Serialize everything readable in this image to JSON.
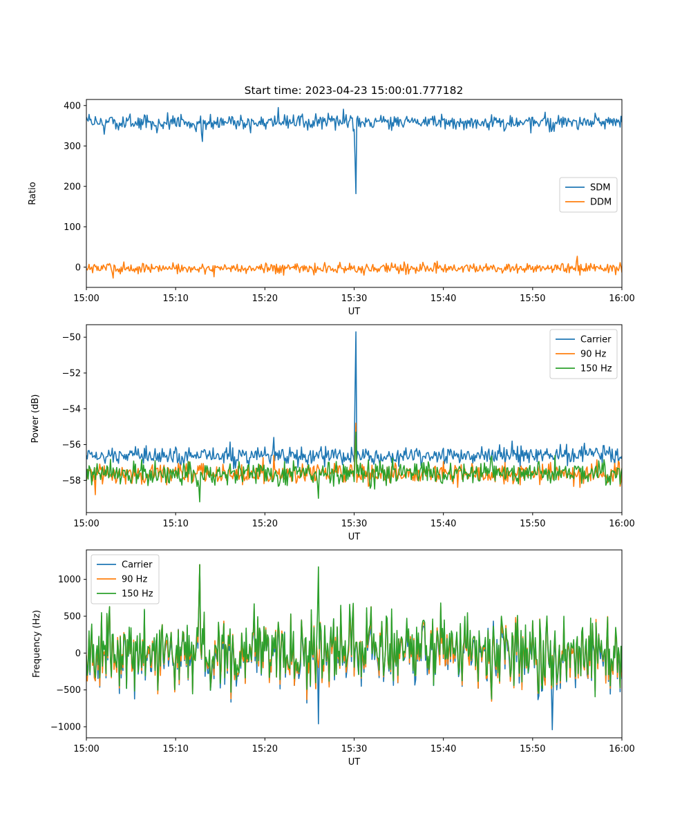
{
  "figure": {
    "title": "Start time: 2023-04-23 15:00:01.777182"
  },
  "colors": {
    "SDM": "#1f77b4",
    "DDM": "#ff7f0e",
    "Carrier": "#1f77b4",
    "90 Hz": "#ff7f0e",
    "150 Hz": "#2ca02c"
  },
  "chart_data": [
    {
      "type": "line",
      "title": "Start time: 2023-04-23 15:00:01.777182",
      "xlabel": "UT",
      "ylabel": "Ratio",
      "xlim": [
        "15:00",
        "16:00"
      ],
      "x_ticks": [
        "15:00",
        "15:10",
        "15:20",
        "15:30",
        "15:40",
        "15:50",
        "16:00"
      ],
      "ylim": [
        -50,
        415
      ],
      "y_ticks": [
        0,
        100,
        200,
        300,
        400
      ],
      "y_tick_labels": [
        "0",
        "100",
        "200",
        "300",
        "400"
      ],
      "legend": "center-right",
      "grid": false,
      "series": [
        {
          "name": "SDM",
          "color": "#1f77b4",
          "base": 358,
          "noise": 13,
          "events": [
            {
              "t": "15:30:12",
              "y": 182
            },
            {
              "t": "15:21:30",
              "y": 395
            },
            {
              "t": "15:13:00",
              "y": 311
            },
            {
              "t": "15:28:50",
              "y": 391
            }
          ]
        },
        {
          "name": "DDM",
          "color": "#ff7f0e",
          "base": -3,
          "noise": 9,
          "events": [
            {
              "t": "15:55:00",
              "y": 27
            },
            {
              "t": "15:03:00",
              "y": -27
            }
          ]
        }
      ]
    },
    {
      "type": "line",
      "xlabel": "UT",
      "ylabel": "Power (dB)",
      "xlim": [
        "15:00",
        "16:00"
      ],
      "x_ticks": [
        "15:00",
        "15:10",
        "15:20",
        "15:30",
        "15:40",
        "15:50",
        "16:00"
      ],
      "ylim": [
        -59.8,
        -49.3
      ],
      "y_ticks": [
        -58,
        -56,
        -54,
        -52,
        -50
      ],
      "y_tick_labels": [
        "−58",
        "−56",
        "−54",
        "−52",
        "−50"
      ],
      "legend": "top-right",
      "grid": false,
      "series": [
        {
          "name": "Carrier",
          "color": "#1f77b4",
          "base": -56.6,
          "noise": 0.35,
          "events": [
            {
              "t": "15:30:10",
              "y": -49.7
            },
            {
              "t": "15:21:00",
              "y": -55.6
            },
            {
              "t": "15:47:40",
              "y": -55.8
            }
          ]
        },
        {
          "name": "90 Hz",
          "color": "#ff7f0e",
          "base": -57.6,
          "noise": 0.4,
          "events": [
            {
              "t": "15:30:10",
              "y": -54.8
            },
            {
              "t": "15:21:00",
              "y": -56.6
            },
            {
              "t": "15:01:00",
              "y": -58.8
            }
          ]
        },
        {
          "name": "150 Hz",
          "color": "#2ca02c",
          "base": -57.6,
          "noise": 0.45,
          "events": [
            {
              "t": "15:30:10",
              "y": -55.3
            },
            {
              "t": "15:12:40",
              "y": -59.2
            },
            {
              "t": "15:26:00",
              "y": -59.0
            }
          ]
        }
      ]
    },
    {
      "type": "line",
      "xlabel": "UT",
      "ylabel": "Frequency (Hz)",
      "xlim": [
        "15:00",
        "16:00"
      ],
      "x_ticks": [
        "15:00",
        "15:10",
        "15:20",
        "15:30",
        "15:40",
        "15:50",
        "16:00"
      ],
      "ylim": [
        -1150,
        1400
      ],
      "y_ticks": [
        -1000,
        -500,
        0,
        500,
        1000
      ],
      "y_tick_labels": [
        "−1000",
        "−500",
        "0",
        "500",
        "1000"
      ],
      "legend": "top-left",
      "grid": false,
      "series": [
        {
          "name": "Carrier",
          "color": "#1f77b4",
          "base": -40,
          "noise": 380,
          "events": [
            {
              "t": "15:52:10",
              "y": -1040
            },
            {
              "t": "15:26:00",
              "y": -960
            },
            {
              "t": "15:12:40",
              "y": 1200
            }
          ]
        },
        {
          "name": "90 Hz",
          "color": "#ff7f0e",
          "base": -10,
          "noise": 380,
          "events": [
            {
              "t": "15:12:40",
              "y": 1200
            }
          ]
        },
        {
          "name": "150 Hz",
          "color": "#2ca02c",
          "base": 20,
          "noise": 380,
          "events": [
            {
              "t": "15:12:40",
              "y": 1200
            },
            {
              "t": "15:26:00",
              "y": 1170
            }
          ]
        }
      ]
    }
  ]
}
